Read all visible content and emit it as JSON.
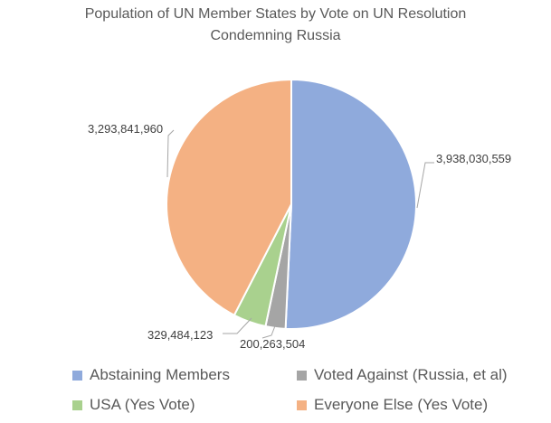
{
  "chart_data": {
    "type": "pie",
    "title_lines": [
      "Population of UN Member States by Vote on UN Resolution",
      "Condemning Russia"
    ],
    "slices": [
      {
        "name": "Abstaining Members",
        "value": 3938030559,
        "label": "3,938,030,559",
        "color": "#8FAADC"
      },
      {
        "name": "Voted Against (Russia, et al)",
        "value": 200263504,
        "label": "200,263,504",
        "color": "#A5A5A5"
      },
      {
        "name": "USA (Yes Vote)",
        "value": 329484123,
        "label": "329,484,123",
        "color": "#A9D18E"
      },
      {
        "name": "Everyone Else (Yes Vote)",
        "value": 3293841960,
        "label": "3,293,841,960",
        "color": "#F4B183"
      }
    ],
    "legend_position": "bottom"
  }
}
